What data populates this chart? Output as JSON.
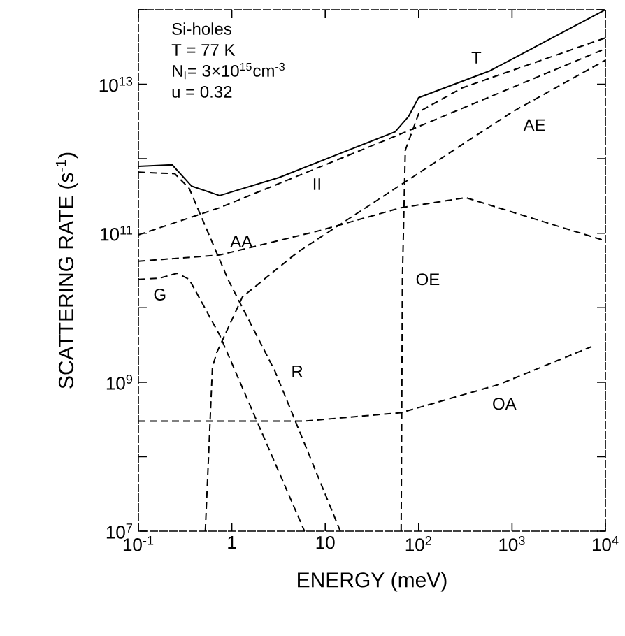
{
  "chart_data": {
    "type": "line",
    "xlabel": "ENERGY (meV)",
    "ylabel": "SCATTERING RATE (s$^{-1}$)",
    "log": "xy",
    "line_style": "dashed",
    "annotations": [
      "Si-holes",
      "T = 77 K",
      "N$_{I}$= 3×10$^{15}$cm$^{-3}$",
      "u = 0.32"
    ],
    "xlim": [
      0.1,
      10000
    ],
    "ylim": [
      10000000.0,
      100000000000000.0
    ],
    "xticks": [
      {
        "value": 0.1,
        "label": "10$^{-1}$"
      },
      1,
      10,
      {
        "value": 100,
        "label": "10$^{2}$"
      },
      {
        "value": 1000,
        "label": "10$^{3}$"
      },
      {
        "value": 10000,
        "label": "10$^{4}$"
      }
    ],
    "yticks": [
      {
        "value": 10000000.0,
        "label": "10$^{7}$"
      },
      {
        "value": 100000000.0,
        "label": null
      },
      {
        "value": 1000000000.0,
        "label": "10$^{9}$"
      },
      {
        "value": 10000000000.0,
        "label": null
      },
      {
        "value": 100000000000.0,
        "label": "10$^{11}$"
      },
      {
        "value": 1000000000000.0,
        "label": null
      },
      {
        "value": 10000000000000.0,
        "label": "10$^{13}$"
      },
      {
        "value": 100000000000000.0,
        "label": null
      }
    ],
    "series": [
      {
        "name": "T",
        "color": "#000000",
        "line_style": "solid",
        "x": [
          0.1,
          0.23,
          0.37,
          0.74,
          3.2,
          56,
          78,
          100,
          570,
          10000
        ],
        "values": [
          790000000000.0,
          830000000000.0,
          430000000000.0,
          320000000000.0,
          560000000000.0,
          2300000000000.0,
          3700000000000.0,
          6600000000000.0,
          15000000000000.0,
          100000000000000.0
        ]
      },
      {
        "name": "II",
        "color": "#000000",
        "x": [
          0.1,
          0.74,
          56,
          10000
        ],
        "values": [
          95000000000.0,
          220000000000.0,
          2000000000000.0,
          30000000000000.0
        ]
      },
      {
        "name": "AA",
        "color": "#000000",
        "x": [
          0.1,
          0.74,
          9.1,
          65,
          320,
          10000
        ],
        "values": [
          42000000000.0,
          51000000000.0,
          110000000000.0,
          220000000000.0,
          300000000000.0,
          79000000000.0
        ]
      },
      {
        "name": "AE",
        "color": "#000000",
        "x": [
          0.52,
          0.62,
          0.69,
          1.3,
          5.1,
          65,
          1020,
          10000
        ],
        "values": [
          10000000.0,
          1600000000.0,
          2500000000.0,
          14000000000.0,
          56000000000.0,
          450000000000.0,
          4300000000000.0,
          21000000000000.0
        ]
      },
      {
        "name": "OE",
        "color": "#000000",
        "x": [
          65,
          67,
          72,
          102,
          290,
          10000
        ],
        "values": [
          10000000.0,
          24000000000.0,
          1300000000000.0,
          4300000000000.0,
          8900000000000.0,
          42000000000000.0
        ]
      },
      {
        "name": "OA",
        "color": "#000000",
        "x": [
          0.1,
          5.9,
          65,
          720,
          7100
        ],
        "values": [
          300000000.0,
          300000000.0,
          390000000.0,
          930000000.0,
          3000000000.0
        ]
      },
      {
        "name": "G",
        "color": "#000000",
        "x": [
          0.1,
          0.17,
          0.26,
          0.35,
          0.74,
          6.0
        ],
        "values": [
          24000000000.0,
          25000000000.0,
          29000000000.0,
          24000000000.0,
          4300000000.0,
          10000000.0
        ]
      },
      {
        "name": "R",
        "color": "#000000",
        "x": [
          0.1,
          0.245,
          0.35,
          0.91,
          2.9,
          14.5
        ],
        "values": [
          660000000000.0,
          630000000000.0,
          400000000000.0,
          24000000000.0,
          1400000000.0,
          10000000.0
        ]
      }
    ]
  }
}
